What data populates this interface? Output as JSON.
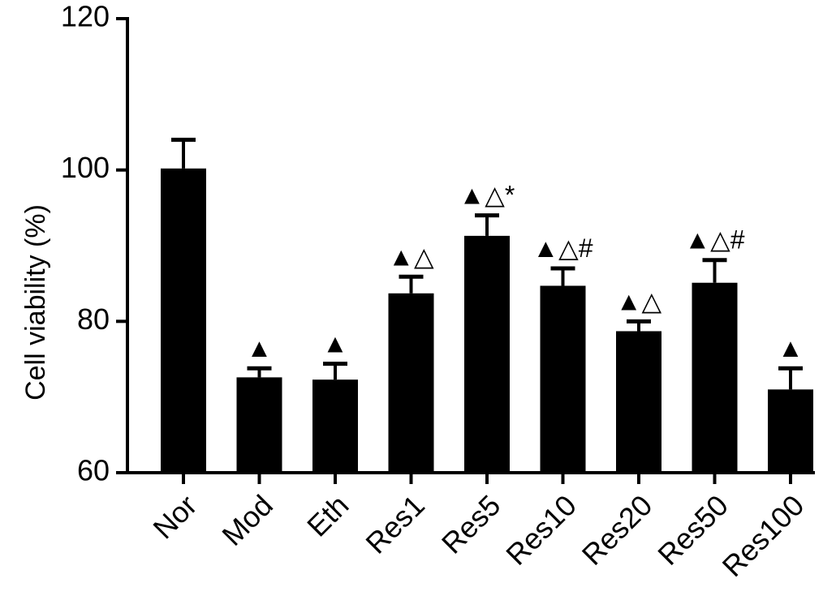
{
  "chart_data": {
    "type": "bar",
    "title": "",
    "xlabel": "",
    "ylabel": "Cell viability (%)",
    "ylim": [
      60,
      120
    ],
    "yticks": [
      60,
      80,
      100,
      120
    ],
    "grid": false,
    "colors": {
      "bar": "#000000",
      "axis": "#000000",
      "background": "#ffffff"
    },
    "categories": [
      "Nor",
      "Mod",
      "Eth",
      "Res1",
      "Res5",
      "Res10",
      "Res20",
      "Res50",
      "Res100"
    ],
    "values": [
      100.2,
      72.6,
      72.3,
      83.7,
      91.3,
      84.7,
      78.7,
      85.1,
      71.0
    ],
    "error": [
      3.8,
      1.2,
      2.1,
      2.2,
      2.7,
      2.3,
      1.3,
      3.0,
      2.8
    ],
    "annotations": [
      "",
      "▲",
      "▲",
      "▲△",
      "▲△*",
      "▲△#",
      "▲△",
      "▲△#",
      "▲"
    ]
  }
}
